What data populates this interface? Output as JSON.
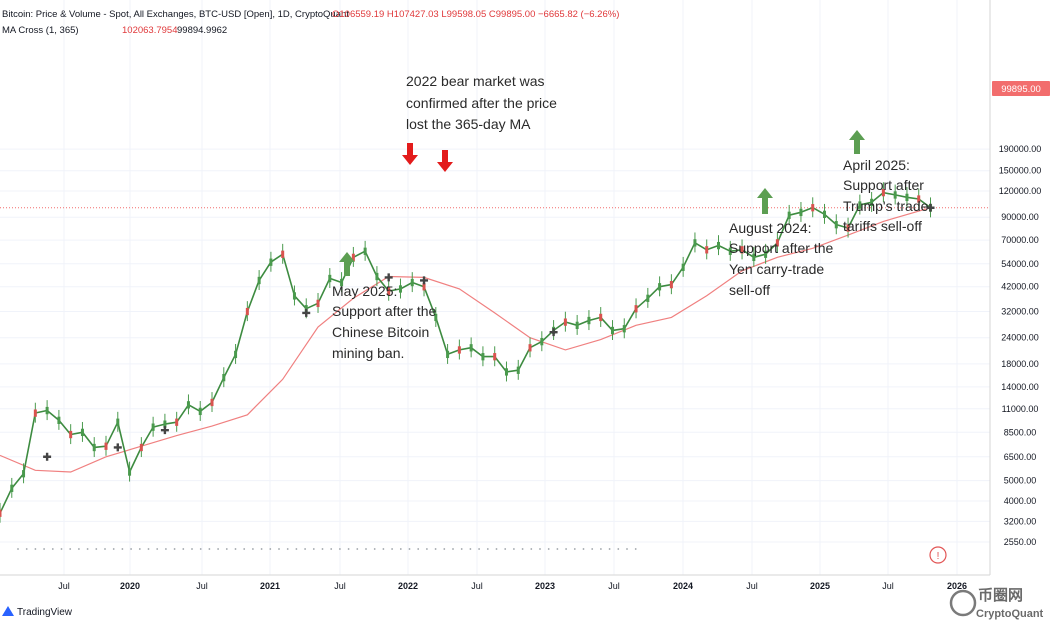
{
  "header": {
    "line1_title": "Bitcoin: Price & Volume - Spot, All Exchanges, BTC-USD [Open], 1D, CryptoQuant",
    "line1_ohlc": "O106559.19  H107427.03  L99598.05  C99895.00  −6665.82 (−6.26%)",
    "line2_name": "MA Cross (1, 365)",
    "line2_v1": "102063.7954",
    "line2_v2": "99894.9962"
  },
  "price_label": "99895.00",
  "y_ticks": [
    "190000.00",
    "150000.00",
    "120000.00",
    "90000.00",
    "70000.00",
    "54000.00",
    "42000.00",
    "32000.00",
    "24000.00",
    "18000.00",
    "14000.00",
    "11000.00",
    "8500.00",
    "6500.00",
    "5000.00",
    "4000.00",
    "3200.00",
    "2550.00"
  ],
  "x_ticks": [
    "Jul",
    "2020",
    "Jul",
    "2021",
    "Jul",
    "2022",
    "Jul",
    "2023",
    "Jul",
    "2024",
    "Jul",
    "2025",
    "Jul",
    "2026"
  ],
  "annotations": {
    "bear": [
      "2022 bear market was",
      "confirmed after the price",
      "lost the 365-day MA"
    ],
    "may": [
      "May 2025:",
      "Support after the",
      "Chinese Bitcoin",
      "mining ban."
    ],
    "aug": [
      "August 2024:",
      "Support after the",
      "Yen carry-trade",
      "sell-off"
    ],
    "apr": [
      "April 2025:",
      "Support after",
      "Trump's trade",
      "tariffs sell-off"
    ]
  },
  "branding": {
    "tradingview": "TradingView",
    "cryptoquant": "CryptoQuant",
    "watermark_cn": "币圈网"
  },
  "colors": {
    "up": "#26a69a",
    "ma": "#f08080",
    "red_arrow": "#e31b1b",
    "green_arrow": "#5c9e52",
    "price_badge": "#f26d6d"
  },
  "chart_data": {
    "type": "line",
    "title": "Bitcoin: Price & Volume - Spot, All Exchanges, BTC-USD [Open], 1D, CryptoQuant",
    "y_scale": "log",
    "ylim": [
      2400,
      200000
    ],
    "series": [
      {
        "name": "",
        "x": [
          "2019-04",
          "2019-05",
          "2019-06",
          "2019-07",
          "2019-08",
          "2019-09",
          "2019-10",
          "2019-11",
          "2019-12",
          "2020-01",
          "2020-02",
          "2020-03",
          "2020-04",
          "2020-05",
          "2020-06",
          "2020-07",
          "2020-08",
          "2020-09",
          "2020-10",
          "2020-11",
          "2020-12",
          "2021-01",
          "2021-02",
          "2021-03",
          "2021-04",
          "2021-05",
          "2021-06",
          "2021-07",
          "2021-08",
          "2021-09",
          "2021-10",
          "2021-11",
          "2021-12",
          "2022-01",
          "2022-02",
          "2022-03",
          "2022-04",
          "2022-05",
          "2022-06",
          "2022-07",
          "2022-08",
          "2022-09",
          "2022-10",
          "2022-11",
          "2022-12",
          "2023-01",
          "2023-02",
          "2023-03",
          "2023-04",
          "2023-05",
          "2023-06",
          "2023-07",
          "2023-08",
          "2023-09",
          "2023-10",
          "2023-11",
          "2023-12",
          "2024-01",
          "2024-02",
          "2024-03",
          "2024-04",
          "2024-05",
          "2024-06",
          "2024-07",
          "2024-08",
          "2024-09",
          "2024-10",
          "2024-11",
          "2024-12",
          "2025-01",
          "2025-02",
          "2025-03",
          "2025-04",
          "2025-05",
          "2025-06",
          "2025-07",
          "2025-08",
          "2025-09",
          "2025-10",
          "2025-11"
        ],
        "values": [
          3500,
          4600,
          5400,
          10500,
          10800,
          9700,
          8300,
          8500,
          7200,
          7300,
          9500,
          5500,
          7200,
          9000,
          9300,
          9500,
          11500,
          10700,
          11800,
          15500,
          20000,
          32000,
          45000,
          55000,
          60000,
          38000,
          33000,
          35000,
          46000,
          44000,
          58000,
          62000,
          47000,
          40000,
          41000,
          44000,
          42000,
          30000,
          20000,
          21000,
          21500,
          19500,
          19500,
          16500,
          16800,
          21500,
          23000,
          26000,
          28500,
          27500,
          29000,
          30000,
          26000,
          26500,
          33000,
          37000,
          42000,
          43000,
          52000,
          68000,
          63000,
          66000,
          62000,
          63000,
          58000,
          60000,
          68000,
          92000,
          95000,
          100000,
          93000,
          83000,
          80000,
          103000,
          106000,
          118000,
          115000,
          112000,
          110000,
          99895
        ]
      },
      {
        "name": "MA Cross (1, 365)",
        "x": [
          "2019-04",
          "2019-07",
          "2019-10",
          "2020-01",
          "2020-04",
          "2020-07",
          "2020-10",
          "2021-01",
          "2021-04",
          "2021-07",
          "2021-10",
          "2022-01",
          "2022-04",
          "2022-07",
          "2022-10",
          "2023-01",
          "2023-04",
          "2023-07",
          "2023-10",
          "2024-01",
          "2024-04",
          "2024-07",
          "2024-10",
          "2025-01",
          "2025-04",
          "2025-07",
          "2025-11"
        ],
        "values": [
          6600,
          5600,
          5500,
          6500,
          7300,
          8200,
          9100,
          10300,
          15200,
          27000,
          37000,
          47000,
          46500,
          41000,
          31500,
          24000,
          21000,
          23500,
          27500,
          30000,
          38000,
          50000,
          58000,
          64000,
          74000,
          86000,
          99895
        ]
      }
    ],
    "x_tick_labels": [
      "Jul",
      "2020",
      "Jul",
      "2021",
      "Jul",
      "2022",
      "Jul",
      "2023",
      "Jul",
      "2024",
      "Jul",
      "2025",
      "Jul",
      "2026"
    ],
    "y_tick_labels": [
      "190000.00",
      "150000.00",
      "120000.00",
      "90000.00",
      "70000.00",
      "54000.00",
      "42000.00",
      "32000.00",
      "24000.00",
      "18000.00",
      "14000.00",
      "11000.00",
      "8500.00",
      "6500.00",
      "5000.00",
      "4000.00",
      "3200.00",
      "2550.00"
    ],
    "annotations": [
      "2022 bear market was confirmed after the price lost the 365-day MA",
      "May 2025: Support after the Chinese Bitcoin mining ban.",
      "August 2024: Support after the Yen carry-trade sell-off",
      "April 2025: Support after Trump's trade tariffs sell-off"
    ],
    "grid": true
  }
}
